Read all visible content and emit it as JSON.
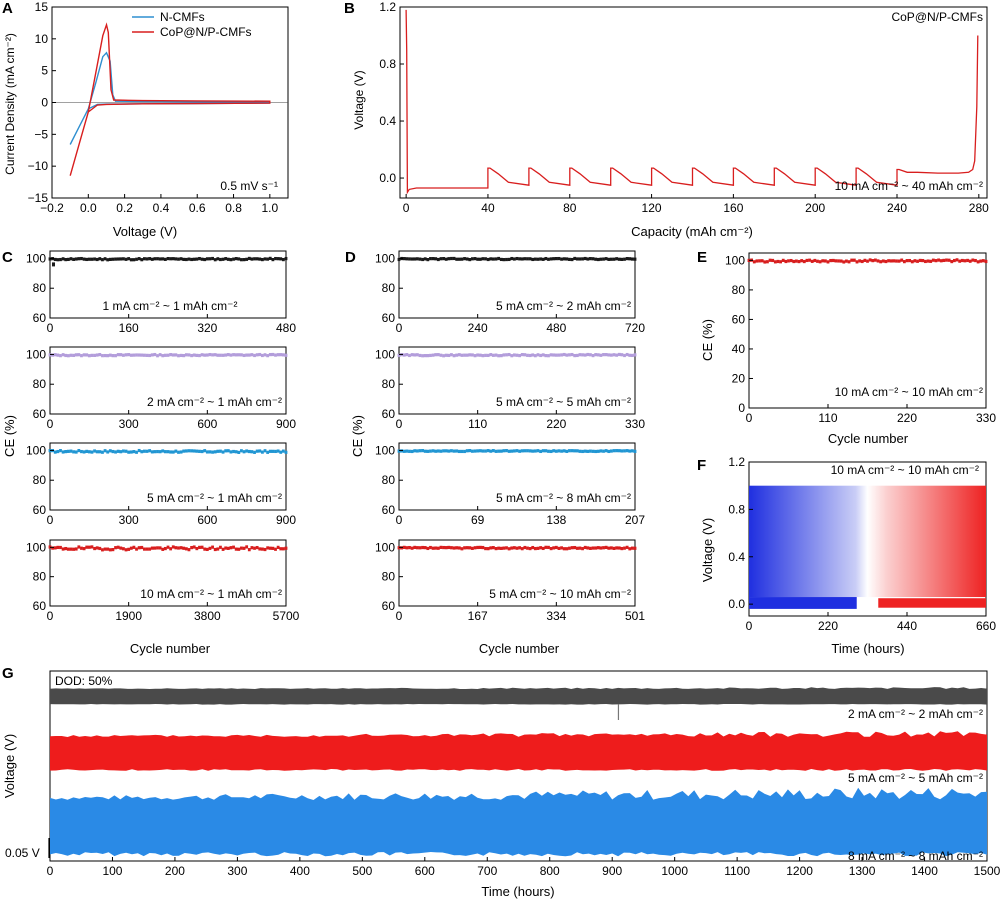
{
  "colors": {
    "n_cmfs": "#2f8fd0",
    "cop": "#d81e1e",
    "ce_black": "#1a1a1a",
    "ce_purple": "#b39ddb",
    "ce_cyan": "#2196d3",
    "ce_red": "#d81e1e",
    "g_gray": "#4a4a4a",
    "g_red": "#ee1c1c",
    "g_blue": "#2a8ae6",
    "f_blue": "#1f2fe0",
    "f_red": "#ee2222"
  },
  "panels": {
    "A": {
      "letter": "A",
      "xlabel": "Voltage (V)",
      "annotation": "0.5 mV s⁻¹"
    },
    "B": {
      "letter": "B",
      "xlabel": "Capacity (mAh cm⁻²)",
      "ylabel": "Voltage (V)",
      "corner": "CoP@N/P-CMFs",
      "annotation": "10 mA cm⁻² ~ 40 mAh cm⁻²"
    },
    "C": {
      "letter": "C",
      "xlabel": "Cycle number",
      "ylabel": "CE (%)"
    },
    "D": {
      "letter": "D",
      "xlabel": "Cycle number",
      "ylabel": "CE (%)"
    },
    "E": {
      "letter": "E",
      "xlabel": "Cycle number",
      "ylabel": "CE (%)",
      "annotation": "10 mA cm⁻² ~ 10 mAh cm⁻²"
    },
    "F": {
      "letter": "F",
      "xlabel": "Time (hours)",
      "ylabel": "Voltage (V)",
      "annotation": "10 mA cm⁻² ~ 10 mAh cm⁻²"
    },
    "G": {
      "letter": "G",
      "xlabel": "Time (hours)",
      "ylabel": "Voltage (V)",
      "dod": "DOD: 50%",
      "scale_bar": "0.05 V"
    }
  },
  "chart_data": [
    {
      "panel": "A",
      "type": "line",
      "xlabel": "Voltage (V)",
      "ylabel": "Current Density (mA cm⁻²)",
      "xlim": [
        -0.2,
        1.1
      ],
      "ylim": [
        -15,
        15
      ],
      "xticks": [
        "−0.2",
        "0.0",
        "0.2",
        "0.4",
        "0.6",
        "0.8",
        "1.0"
      ],
      "yticks": [
        "15",
        "10",
        "5",
        "0",
        "−5",
        "−10",
        "−15"
      ],
      "legend_position": "top-right",
      "series": [
        {
          "name": "N-CMFs",
          "x": [
            -0.1,
            -0.05,
            0.0,
            0.04,
            0.08,
            0.1,
            0.12,
            0.135,
            0.15,
            0.3,
            0.6,
            1.0,
            1.0,
            0.6,
            0.3,
            0.1,
            0.05,
            0.0,
            -0.05,
            -0.1
          ],
          "y": [
            -6.6,
            -3.8,
            -1.0,
            3.0,
            7.2,
            7.8,
            6.5,
            1.2,
            0.2,
            0.15,
            0.1,
            0.1,
            -0.1,
            -0.15,
            -0.2,
            -0.25,
            -0.3,
            -1.0,
            -3.8,
            -6.6
          ]
        },
        {
          "name": "CoP@N/P-CMFs",
          "x": [
            -0.1,
            -0.05,
            0.0,
            0.04,
            0.08,
            0.1,
            0.11,
            0.125,
            0.14,
            0.3,
            0.6,
            1.0,
            1.0,
            0.6,
            0.3,
            0.1,
            0.05,
            0.0,
            -0.05,
            -0.1
          ],
          "y": [
            -11.5,
            -6.5,
            -1.5,
            4.5,
            10.5,
            12.2,
            11.0,
            2.0,
            0.4,
            0.3,
            0.25,
            0.2,
            -0.1,
            -0.15,
            -0.2,
            -0.3,
            -0.4,
            -1.5,
            -6.5,
            -11.5
          ]
        }
      ]
    },
    {
      "panel": "B",
      "type": "line",
      "xlabel": "Capacity (mAh cm⁻²)",
      "ylabel": "Voltage (V)",
      "xlim": [
        -3,
        284
      ],
      "ylim": [
        -0.14,
        1.2
      ],
      "xticks": [
        "0",
        "40",
        "80",
        "120",
        "160",
        "200",
        "240",
        "280"
      ],
      "yticks": [
        "1.2",
        "0.8",
        "0.4",
        "0.0"
      ],
      "series": [
        {
          "name": "CoP@N/P-CMFs",
          "x": [
            0,
            0.3,
            0.6,
            1.5,
            5,
            40,
            40,
            40.5,
            41,
            45,
            50,
            60,
            60,
            60.5,
            61,
            65,
            70,
            80,
            80,
            80.5,
            81,
            85,
            90,
            100,
            100,
            100.5,
            101,
            105,
            110,
            120,
            120,
            120.5,
            121,
            125,
            130,
            140,
            140,
            140.5,
            141,
            145,
            150,
            160,
            160,
            160.5,
            161,
            165,
            170,
            180,
            180,
            180.5,
            181,
            185,
            190,
            200,
            200,
            200.5,
            201,
            205,
            210,
            220,
            220,
            220.5,
            221,
            225,
            230,
            240,
            240,
            240.5,
            241,
            245,
            250,
            260,
            270,
            275,
            277,
            278,
            279,
            279.5
          ],
          "y": [
            1.18,
            0.9,
            -0.1,
            -0.08,
            -0.07,
            -0.07,
            0.07,
            0.07,
            0.07,
            0.03,
            -0.03,
            -0.05,
            0.07,
            0.07,
            0.07,
            0.03,
            -0.03,
            -0.05,
            0.07,
            0.07,
            0.07,
            0.03,
            -0.03,
            -0.05,
            0.07,
            0.07,
            0.07,
            0.03,
            -0.03,
            -0.05,
            0.07,
            0.07,
            0.07,
            0.03,
            -0.03,
            -0.05,
            0.07,
            0.07,
            0.07,
            0.03,
            -0.03,
            -0.05,
            0.07,
            0.07,
            0.07,
            0.03,
            -0.03,
            -0.05,
            0.07,
            0.07,
            0.07,
            0.03,
            -0.03,
            -0.05,
            0.07,
            0.07,
            0.07,
            0.03,
            -0.03,
            -0.05,
            0.07,
            0.07,
            0.07,
            0.03,
            -0.03,
            -0.05,
            0.06,
            0.06,
            0.06,
            0.04,
            0.04,
            0.035,
            0.035,
            0.04,
            0.06,
            0.12,
            0.5,
            1.0
          ]
        }
      ]
    },
    {
      "panel": "C1",
      "type": "scatter",
      "ylabel": "CE (%)",
      "xlim": [
        0,
        480
      ],
      "ylim": [
        60,
        105
      ],
      "xticks": [
        "0",
        "160",
        "320",
        "480"
      ],
      "yticks": [
        "100",
        "80",
        "60"
      ],
      "series": [
        {
          "name": "",
          "x": [
            0,
            480
          ],
          "y": [
            99.5,
            99.6
          ]
        }
      ],
      "annotation": "1 mA cm⁻² ~ 1 mAh cm⁻²",
      "note_values": [
        96
      ]
    },
    {
      "panel": "C2",
      "type": "scatter",
      "ylabel": "CE (%)",
      "xlim": [
        0,
        900
      ],
      "ylim": [
        60,
        105
      ],
      "xticks": [
        "0",
        "300",
        "600",
        "900"
      ],
      "yticks": [
        "100",
        "80",
        "60"
      ],
      "series": [
        {
          "name": "",
          "x": [
            0,
            900
          ],
          "y": [
            99.5,
            99.6
          ]
        }
      ],
      "annotation": "2 mA cm⁻² ~ 1 mAh cm⁻²"
    },
    {
      "panel": "C3",
      "type": "scatter",
      "ylabel": "CE (%)",
      "xlim": [
        0,
        900
      ],
      "ylim": [
        60,
        105
      ],
      "xticks": [
        "0",
        "300",
        "600",
        "900"
      ],
      "yticks": [
        "100",
        "80",
        "60"
      ],
      "series": [
        {
          "name": "",
          "x": [
            0,
            900
          ],
          "y": [
            99.4,
            99.2
          ]
        }
      ],
      "annotation": "5 mA cm⁻² ~ 1 mAh cm⁻²"
    },
    {
      "panel": "C4",
      "type": "scatter",
      "xlabel": "Cycle number",
      "ylabel": "CE (%)",
      "xlim": [
        0,
        5700
      ],
      "ylim": [
        60,
        105
      ],
      "xticks": [
        "0",
        "1900",
        "3800",
        "5700"
      ],
      "yticks": [
        "100",
        "80",
        "60"
      ],
      "series": [
        {
          "name": "",
          "x": [
            0,
            5700
          ],
          "y": [
            99.3,
            99.3
          ]
        }
      ],
      "annotation": "10 mA cm⁻² ~ 1 mAh cm⁻²"
    },
    {
      "panel": "D1",
      "type": "scatter",
      "ylabel": "CE (%)",
      "xlim": [
        0,
        720
      ],
      "ylim": [
        60,
        105
      ],
      "xticks": [
        "0",
        "240",
        "480",
        "720"
      ],
      "yticks": [
        "100",
        "80",
        "60"
      ],
      "series": [
        {
          "name": "",
          "x": [
            0,
            720
          ],
          "y": [
            99.6,
            99.6
          ]
        }
      ],
      "annotation": "5 mA cm⁻² ~ 2 mAh cm⁻²"
    },
    {
      "panel": "D2",
      "type": "scatter",
      "ylabel": "CE (%)",
      "xlim": [
        0,
        330
      ],
      "ylim": [
        60,
        105
      ],
      "xticks": [
        "0",
        "110",
        "220",
        "330"
      ],
      "yticks": [
        "100",
        "80",
        "60"
      ],
      "series": [
        {
          "name": "",
          "x": [
            0,
            330
          ],
          "y": [
            99.5,
            99.6
          ]
        }
      ],
      "annotation": "5 mA cm⁻² ~ 5 mAh cm⁻²"
    },
    {
      "panel": "D3",
      "type": "scatter",
      "ylabel": "CE (%)",
      "xlim": [
        0,
        207
      ],
      "ylim": [
        60,
        105
      ],
      "xticks": [
        "0",
        "69",
        "138",
        "207"
      ],
      "yticks": [
        "100",
        "80",
        "60"
      ],
      "series": [
        {
          "name": "",
          "x": [
            0,
            207
          ],
          "y": [
            99.6,
            99.6
          ]
        }
      ],
      "annotation": "5 mA cm⁻² ~ 8 mAh cm⁻²"
    },
    {
      "panel": "D4",
      "type": "scatter",
      "xlabel": "Cycle number",
      "ylabel": "CE (%)",
      "xlim": [
        0,
        501
      ],
      "ylim": [
        60,
        105
      ],
      "xticks": [
        "0",
        "167",
        "334",
        "501"
      ],
      "yticks": [
        "100",
        "80",
        "60"
      ],
      "series": [
        {
          "name": "",
          "x": [
            0,
            501
          ],
          "y": [
            99.5,
            99.5
          ]
        }
      ],
      "annotation": "5 mA cm⁻² ~ 10 mAh cm⁻²"
    },
    {
      "panel": "E",
      "type": "scatter",
      "xlabel": "Cycle number",
      "ylabel": "CE (%)",
      "xlim": [
        0,
        330
      ],
      "ylim": [
        0,
        105
      ],
      "xticks": [
        "0",
        "110",
        "220",
        "330"
      ],
      "yticks": [
        "100",
        "80",
        "60",
        "40",
        "20",
        "0"
      ],
      "series": [
        {
          "name": "",
          "x": [
            0,
            330
          ],
          "y": [
            99.5,
            99.7
          ]
        }
      ]
    },
    {
      "panel": "F",
      "type": "area",
      "xlabel": "Time (hours)",
      "ylabel": "Voltage (V)",
      "xlim": [
        0,
        660
      ],
      "ylim": [
        -0.1,
        1.2
      ],
      "xticks": [
        "0",
        "220",
        "440",
        "660"
      ],
      "yticks": [
        "1.2",
        "0.8",
        "0.4",
        "0.0"
      ],
      "series": [
        {
          "name": "",
          "x": [
            0,
            660
          ],
          "y_upper": [
            1.0,
            1.0
          ],
          "y_lower": [
            0.06,
            0.05
          ]
        }
      ]
    },
    {
      "panel": "G",
      "type": "area",
      "xlabel": "Time (hours)",
      "ylabel": "Voltage (V)",
      "xlim": [
        0,
        1500
      ],
      "xticks": [
        "0",
        "100",
        "200",
        "300",
        "400",
        "500",
        "600",
        "700",
        "800",
        "900",
        "1000",
        "1100",
        "1200",
        "1300",
        "1400",
        "1500"
      ],
      "series": [
        {
          "name": "2 mA cm⁻² ~ 2 mAh cm⁻²",
          "x": [
            0,
            1500
          ]
        },
        {
          "name": "5 mA cm⁻² ~ 5 mAh cm⁻²",
          "x": [
            0,
            1500
          ]
        },
        {
          "name": "8 mA cm⁻² ~ 8 mAh cm⁻²",
          "x": [
            0,
            1500
          ]
        }
      ]
    }
  ]
}
